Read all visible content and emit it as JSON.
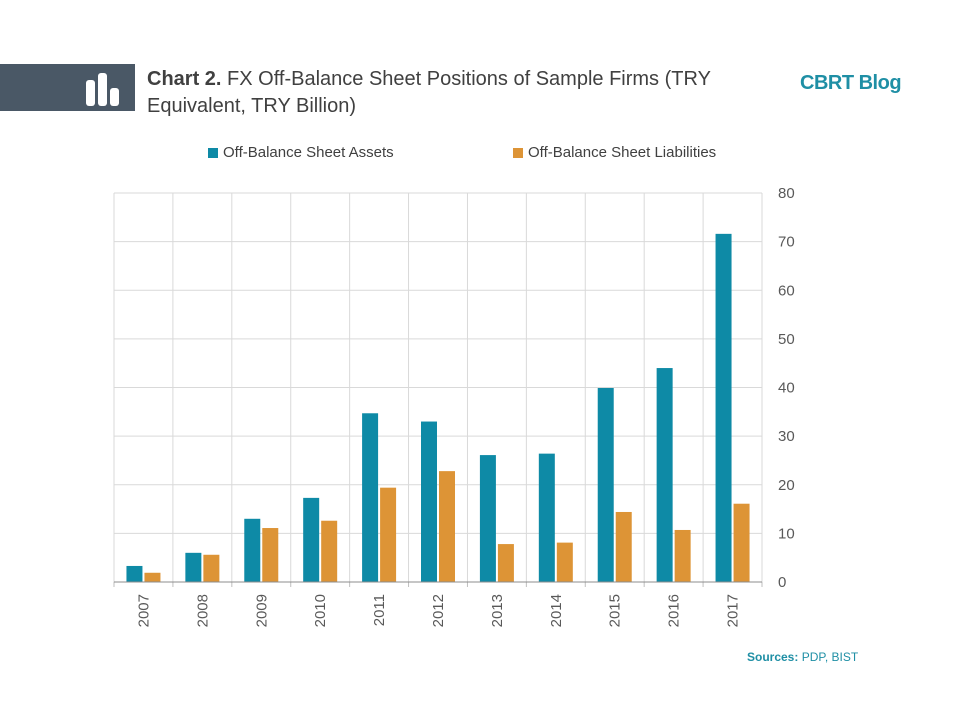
{
  "header": {
    "title_lead": "Chart 2.",
    "title_rest": " FX Off-Balance Sheet Positions of Sample Firms (TRY Equivalent, TRY Billion)",
    "brand": "CBRT Blog",
    "icon": "bar-chart-icon"
  },
  "colors": {
    "assets": "#0e8aa6",
    "liabilities": "#dd9436",
    "grid": "#d9d9d9",
    "text": "#595959"
  },
  "chart_data": {
    "type": "bar",
    "categories": [
      "2007",
      "2008",
      "2009",
      "2010",
      "2011",
      "2012",
      "2013",
      "2014",
      "2015",
      "2016",
      "2017"
    ],
    "series": [
      {
        "name": "Off-Balance Sheet Assets",
        "values": [
          3.3,
          6.0,
          13.0,
          17.3,
          34.7,
          33.0,
          26.1,
          26.4,
          39.9,
          44.0,
          71.6
        ]
      },
      {
        "name": "Off-Balance Sheet Liabilities",
        "values": [
          1.9,
          5.6,
          11.1,
          12.6,
          19.4,
          22.8,
          7.8,
          8.1,
          14.4,
          10.7,
          16.1
        ]
      }
    ],
    "ylim": [
      0,
      80
    ],
    "yticks": [
      0,
      10,
      20,
      30,
      40,
      50,
      60,
      70,
      80
    ],
    "y_axis_side": "right",
    "grid": true,
    "legend_position": "top"
  },
  "footer": {
    "sources_label": "Sources:",
    "sources_text": " PDP, BIST"
  }
}
